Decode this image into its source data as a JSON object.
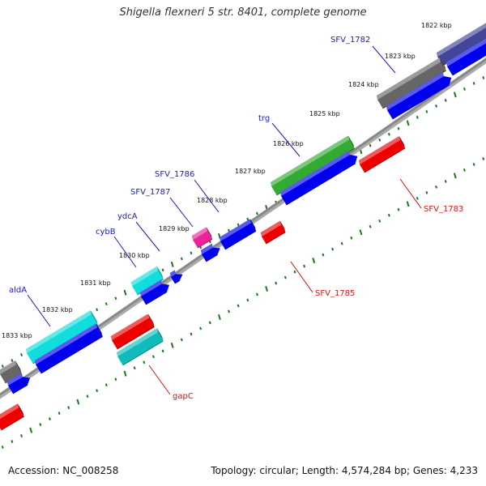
{
  "title": "Shigella flexneri 5 str. 8401, complete genome",
  "footer": {
    "accession": "Accession: NC_008258",
    "topology": "Topology: circular; Length: 4,574,284 bp; Genes: 4,233"
  },
  "ticks": [
    "1822 kbp",
    "1823 kbp",
    "1824 kbp",
    "1825 kbp",
    "1826 kbp",
    "1827 kbp",
    "1828 kbp",
    "1829 kbp",
    "1830 kbp",
    "1831 kbp",
    "1832 kbp",
    "1833 kbp"
  ],
  "gene_labels": [
    {
      "text": "SFV_1782",
      "color": "#1a1acc"
    },
    {
      "text": "trg",
      "color": "#1a1acc"
    },
    {
      "text": "SFV_1786",
      "color": "#1a1acc"
    },
    {
      "text": "SFV_1787",
      "color": "#1a1acc"
    },
    {
      "text": "ydcA",
      "color": "#1a1acc"
    },
    {
      "text": "cybB",
      "color": "#1a1acc"
    },
    {
      "text": "aldA",
      "color": "#1a1acc"
    },
    {
      "text": "SFV_1783",
      "color": "#dd1111"
    },
    {
      "text": "SFV_1785",
      "color": "#dd1111"
    },
    {
      "text": "gapC",
      "color": "#dd1111"
    }
  ],
  "colors": {
    "backbone": "#888888",
    "tick": "#1a7a1a",
    "forward_cds": "#0000ee",
    "reverse_cds": "#ee0000",
    "gene_gray": "#666666",
    "gene_green": "#33aa33",
    "gene_cyan": "#11dddd",
    "gene_teal": "#11bbbb",
    "gene_pink": "#ee2299",
    "gene_navy": "#444499"
  }
}
